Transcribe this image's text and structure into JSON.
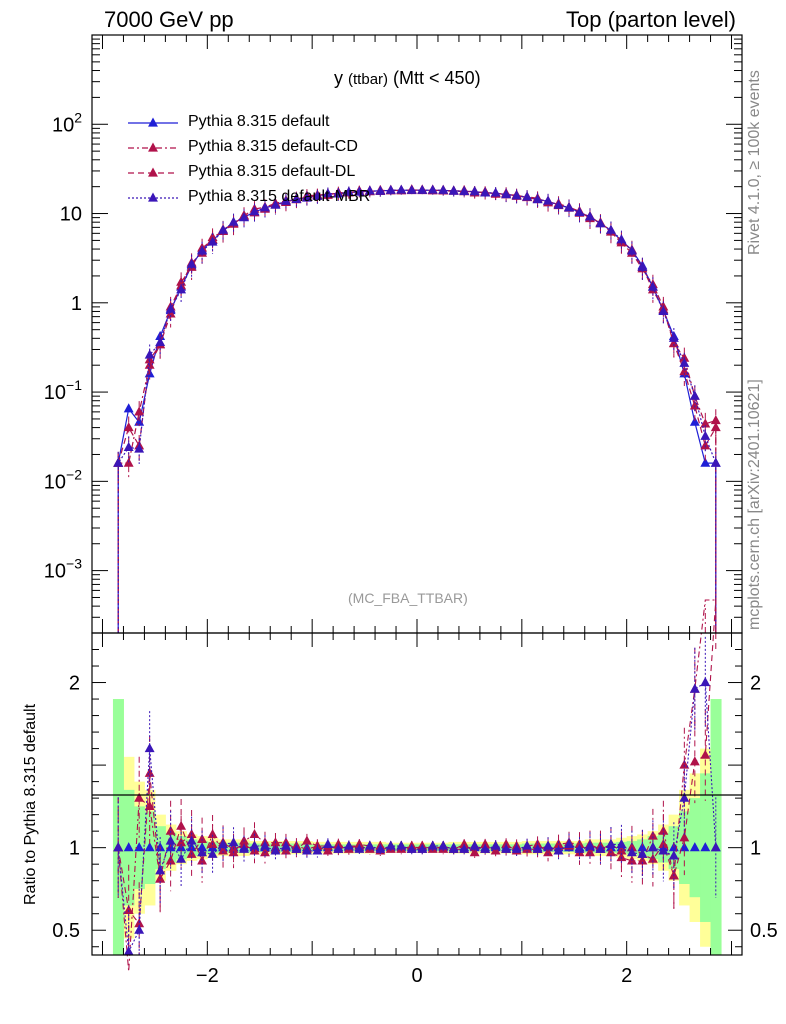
{
  "header": {
    "left": "7000 GeV pp",
    "right": "Top (parton level)"
  },
  "side_labels": {
    "rivet": "Rivet 4.1.0, ≥ 100k events",
    "mcplots": "mcplots.cern.ch [arXiv:2401.10621]"
  },
  "title": {
    "main": "y",
    "small": "(ttbar)",
    "rest": "(Mtt < 450)"
  },
  "analysis_tag": "(MC_FBA_TTBAR)",
  "ratio_ylabel": "Ratio to Pythia 8.315 default",
  "chart_data": {
    "type": "line",
    "scale_y": "log",
    "xlim": [
      -3.1,
      3.1
    ],
    "ylim": [
      0.0002,
      1000
    ],
    "ratio_ylim": [
      0.35,
      2.3
    ],
    "x_ticks": [
      "−2",
      "0",
      "2"
    ],
    "x_tick_values": [
      -2,
      0,
      2
    ],
    "y_ticks": [
      {
        "value": 0.001,
        "base": "10",
        "exp": "−3"
      },
      {
        "value": 0.01,
        "base": "10",
        "exp": "−2"
      },
      {
        "value": 0.1,
        "base": "10",
        "exp": "−1"
      },
      {
        "value": 1,
        "base": "1",
        "exp": ""
      },
      {
        "value": 10,
        "base": "10",
        "exp": ""
      },
      {
        "value": 100,
        "base": "10",
        "exp": "2"
      }
    ],
    "ratio_ticks": [
      {
        "value": 0.5,
        "label": "0.5"
      },
      {
        "value": 1,
        "label": "1"
      },
      {
        "value": 2,
        "label": "2"
      }
    ],
    "x": [
      -2.85,
      -2.75,
      -2.65,
      -2.55,
      -2.45,
      -2.35,
      -2.25,
      -2.15,
      -2.05,
      -1.95,
      -1.85,
      -1.75,
      -1.65,
      -1.55,
      -1.45,
      -1.35,
      -1.25,
      -1.15,
      -1.05,
      -0.95,
      -0.85,
      -0.75,
      -0.65,
      -0.55,
      -0.45,
      -0.35,
      -0.25,
      -0.15,
      -0.05,
      0.05,
      0.15,
      0.25,
      0.35,
      0.45,
      0.55,
      0.65,
      0.75,
      0.85,
      0.95,
      1.05,
      1.15,
      1.25,
      1.35,
      1.45,
      1.55,
      1.65,
      1.75,
      1.85,
      1.95,
      2.05,
      2.15,
      2.25,
      2.35,
      2.45,
      2.55,
      2.65,
      2.75,
      2.85
    ],
    "series": [
      {
        "name": "Pythia 8.315 default",
        "color": "#1f1fd6",
        "dash": "solid",
        "values": [
          0.016,
          0.065,
          0.046,
          0.16,
          0.42,
          0.82,
          1.5,
          2.6,
          3.9,
          5.0,
          6.4,
          7.8,
          9.1,
          10.4,
          11.5,
          12.6,
          13.6,
          14.5,
          15.2,
          15.9,
          16.4,
          16.8,
          17.2,
          17.5,
          17.8,
          18.0,
          18.1,
          18.2,
          18.3,
          18.3,
          18.2,
          18.1,
          18.0,
          17.8,
          17.5,
          17.2,
          16.8,
          16.4,
          15.9,
          15.2,
          14.5,
          13.6,
          12.6,
          11.5,
          10.4,
          9.1,
          7.8,
          6.4,
          5.0,
          3.9,
          2.6,
          1.5,
          0.82,
          0.42,
          0.16,
          0.046,
          0.016,
          0.016
        ],
        "ratio": [
          1.0,
          1.0,
          1.0,
          1.0,
          1.0,
          1.0,
          1.0,
          1.0,
          1.0,
          1.0,
          1.0,
          1.0,
          1.0,
          1.0,
          1.0,
          1.0,
          1.0,
          1.0,
          1.0,
          1.0,
          1.0,
          1.0,
          1.0,
          1.0,
          1.0,
          1.0,
          1.0,
          1.0,
          1.0,
          1.0,
          1.0,
          1.0,
          1.0,
          1.0,
          1.0,
          1.0,
          1.0,
          1.0,
          1.0,
          1.0,
          1.0,
          1.0,
          1.0,
          1.0,
          1.0,
          1.0,
          1.0,
          1.0,
          1.0,
          1.0,
          1.0,
          1.0,
          1.0,
          1.0,
          1.0,
          1.0,
          1.0,
          1.0
        ]
      },
      {
        "name": "Pythia 8.315 default-CD",
        "color": "#b0124a",
        "dash": "6,3,2,3",
        "values": [
          0.016,
          0.016,
          0.06,
          0.2,
          0.34,
          0.9,
          1.55,
          2.8,
          3.6,
          5.4,
          6.3,
          7.6,
          9.5,
          11.2,
          11.8,
          13.0,
          14.0,
          14.3,
          15.8,
          16.1,
          16.0,
          17.2,
          17.0,
          17.9,
          18.0,
          17.7,
          18.3,
          18.0,
          18.5,
          18.1,
          18.4,
          17.9,
          17.8,
          18.1,
          17.0,
          17.5,
          16.5,
          16.8,
          15.6,
          15.4,
          14.8,
          13.2,
          12.9,
          11.8,
          10.6,
          8.8,
          7.9,
          6.2,
          4.7,
          3.6,
          2.4,
          1.6,
          0.9,
          0.35,
          0.24,
          0.09,
          0.044,
          0.048
        ],
        "ratio": [
          1.0,
          0.25,
          1.3,
          1.25,
          0.81,
          1.1,
          1.03,
          1.08,
          0.92,
          1.08,
          0.98,
          0.97,
          1.04,
          1.08,
          1.03,
          1.03,
          1.03,
          0.99,
          1.04,
          1.01,
          0.98,
          1.02,
          0.99,
          1.02,
          1.01,
          0.98,
          1.01,
          0.99,
          1.01,
          0.99,
          1.01,
          0.99,
          0.99,
          1.02,
          0.97,
          1.02,
          0.98,
          1.02,
          0.98,
          1.01,
          1.02,
          0.97,
          1.02,
          1.03,
          1.02,
          0.97,
          1.01,
          0.97,
          0.94,
          0.92,
          0.92,
          1.07,
          1.1,
          0.83,
          1.5,
          1.96,
          2.75,
          3.0
        ]
      },
      {
        "name": "Pythia 8.315 default-DL",
        "color": "#b0124a",
        "dash": "6,4",
        "values": [
          0.016,
          0.04,
          0.025,
          0.23,
          0.34,
          0.75,
          1.7,
          2.5,
          4.1,
          5.1,
          6.6,
          7.7,
          9.3,
          10.2,
          11.2,
          12.5,
          13.3,
          14.7,
          15.1,
          16.0,
          16.6,
          16.7,
          17.3,
          17.7,
          17.6,
          18.2,
          18.0,
          18.3,
          18.1,
          18.4,
          18.0,
          18.3,
          17.9,
          17.6,
          17.7,
          17.0,
          16.9,
          16.2,
          16.1,
          15.1,
          14.4,
          13.8,
          12.3,
          11.6,
          10.1,
          9.3,
          7.7,
          6.5,
          4.9,
          3.9,
          2.5,
          1.4,
          0.84,
          0.35,
          0.17,
          0.07,
          0.025,
          0.04
        ],
        "ratio": [
          1.0,
          0.62,
          0.54,
          1.45,
          0.81,
          0.92,
          1.13,
          0.96,
          1.05,
          1.02,
          1.03,
          0.99,
          1.02,
          0.98,
          0.97,
          0.99,
          0.98,
          1.01,
          0.99,
          1.01,
          1.01,
          0.99,
          1.01,
          1.01,
          0.99,
          1.01,
          0.99,
          1.01,
          0.99,
          1.01,
          0.99,
          1.01,
          0.99,
          0.99,
          1.01,
          0.99,
          1.01,
          0.99,
          1.01,
          0.99,
          0.99,
          1.01,
          0.98,
          1.01,
          0.97,
          1.02,
          0.99,
          1.02,
          0.98,
          1.0,
          0.96,
          0.93,
          1.02,
          0.83,
          1.06,
          1.52,
          1.56,
          2.5
        ]
      },
      {
        "name": "Pythia 8.315 default-MBR",
        "color": "#3a16b8",
        "dash": "2,2",
        "values": [
          0.016,
          0.024,
          0.023,
          0.26,
          0.36,
          0.85,
          1.4,
          2.7,
          3.8,
          4.8,
          6.5,
          8.0,
          9.0,
          10.5,
          11.6,
          12.4,
          13.7,
          14.4,
          14.9,
          15.6,
          16.7,
          16.6,
          17.4,
          17.4,
          17.9,
          17.8,
          18.2,
          18.3,
          18.2,
          18.2,
          18.3,
          18.2,
          17.8,
          17.7,
          17.6,
          17.0,
          17.0,
          16.3,
          15.8,
          15.3,
          14.3,
          13.8,
          12.4,
          11.7,
          10.3,
          9.2,
          7.7,
          6.5,
          5.1,
          3.8,
          2.5,
          1.5,
          0.8,
          0.4,
          0.21,
          0.09,
          0.032,
          0.016
        ],
        "ratio": [
          1.0,
          0.37,
          0.5,
          1.6,
          0.86,
          1.04,
          0.93,
          1.04,
          0.97,
          0.96,
          1.02,
          1.03,
          0.99,
          1.01,
          1.01,
          0.98,
          1.01,
          0.99,
          0.98,
          0.98,
          1.02,
          0.99,
          1.01,
          0.99,
          1.01,
          0.99,
          1.01,
          1.01,
          0.99,
          0.99,
          1.01,
          1.01,
          0.99,
          0.99,
          1.01,
          0.99,
          1.01,
          0.99,
          0.99,
          1.01,
          0.99,
          1.01,
          0.98,
          1.02,
          0.99,
          1.01,
          0.99,
          1.02,
          1.02,
          0.97,
          0.96,
          1.0,
          0.98,
          0.95,
          1.3,
          1.96,
          2.0,
          1.0
        ]
      }
    ],
    "band_yellow": [
      0.9,
      0.55,
      0.4,
      0.35,
      0.2,
      0.14,
      0.1,
      0.08,
      0.07,
      0.06,
      0.05,
      0.05,
      0.05,
      0.04,
      0.04,
      0.04,
      0.04,
      0.04,
      0.04,
      0.035,
      0.035,
      0.035,
      0.035,
      0.035,
      0.035,
      0.035,
      0.03,
      0.03,
      0.03,
      0.03,
      0.03,
      0.03,
      0.035,
      0.035,
      0.035,
      0.035,
      0.035,
      0.035,
      0.035,
      0.04,
      0.04,
      0.04,
      0.04,
      0.04,
      0.04,
      0.05,
      0.05,
      0.05,
      0.06,
      0.07,
      0.08,
      0.1,
      0.14,
      0.2,
      0.35,
      0.45,
      0.6,
      0.9
    ],
    "band_green": [
      0.9,
      0.35,
      0.25,
      0.22,
      0.13,
      0.09,
      0.07,
      0.05,
      0.04,
      0.035,
      0.03,
      0.03,
      0.03,
      0.025,
      0.025,
      0.025,
      0.025,
      0.025,
      0.02,
      0.02,
      0.02,
      0.02,
      0.02,
      0.02,
      0.02,
      0.02,
      0.02,
      0.02,
      0.02,
      0.02,
      0.02,
      0.02,
      0.02,
      0.02,
      0.02,
      0.02,
      0.02,
      0.02,
      0.02,
      0.025,
      0.025,
      0.025,
      0.025,
      0.025,
      0.025,
      0.03,
      0.03,
      0.03,
      0.035,
      0.04,
      0.05,
      0.07,
      0.09,
      0.13,
      0.22,
      0.3,
      0.45,
      0.9
    ]
  }
}
